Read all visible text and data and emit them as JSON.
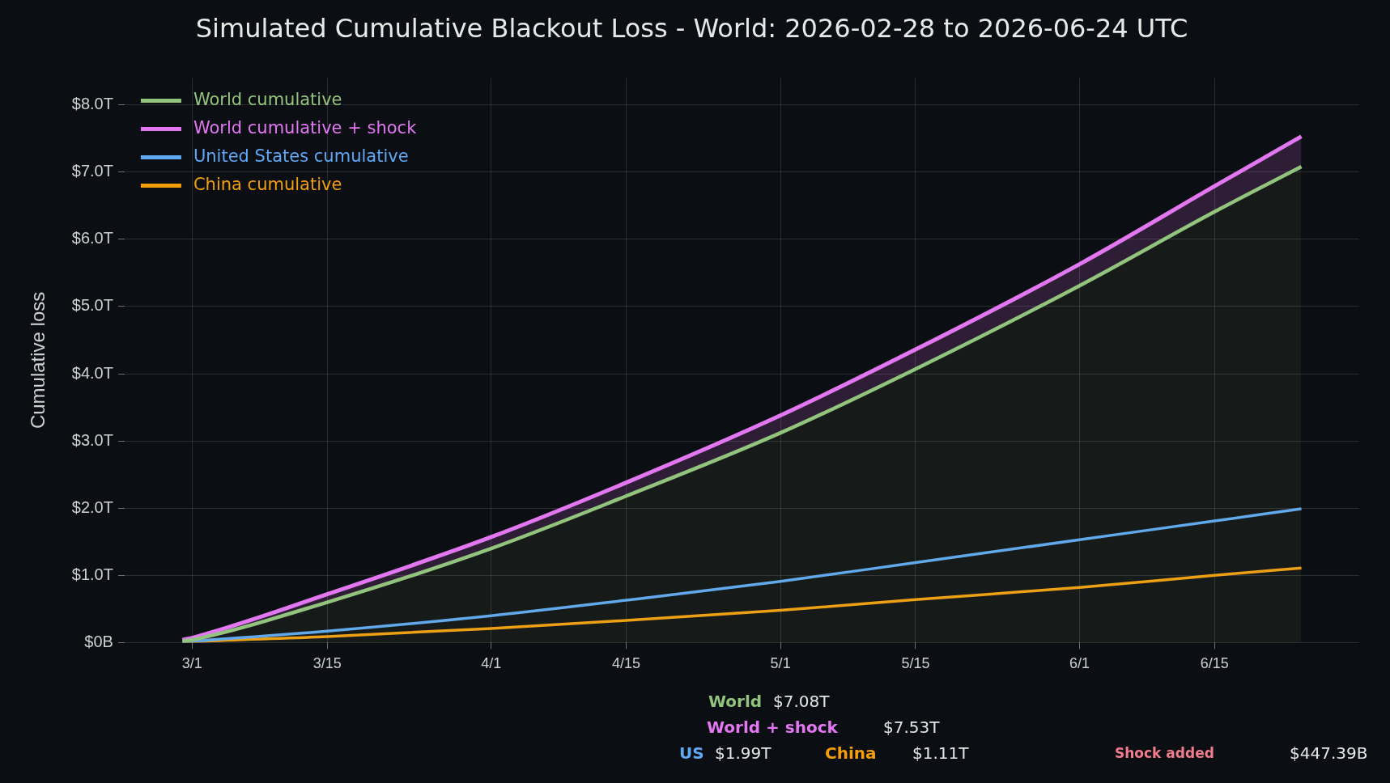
{
  "chart_data": {
    "type": "line",
    "title": "Simulated Cumulative Blackout Loss - World: 2026-02-28 to 2026-06-24 UTC",
    "ylabel": "Cumulative loss",
    "x": [
      "2026-02-28",
      "2026-03-01",
      "2026-03-15",
      "2026-04-01",
      "2026-04-15",
      "2026-05-01",
      "2026-05-15",
      "2026-06-01",
      "2026-06-15",
      "2026-06-24"
    ],
    "series": [
      {
        "name": "World cumulative",
        "type": "area",
        "color": "#93c47d",
        "values": [
          0.02,
          0.04,
          0.6,
          1.4,
          2.18,
          3.12,
          4.07,
          5.31,
          6.41,
          7.08
        ]
      },
      {
        "name": "World cumulative + shock",
        "color": "#e377f2",
        "values": [
          0.04,
          0.07,
          0.72,
          1.57,
          2.38,
          3.38,
          4.36,
          5.63,
          6.79,
          7.53
        ],
        "lower": [
          0.02,
          0.04,
          0.6,
          1.4,
          2.18,
          3.12,
          4.07,
          5.31,
          6.41,
          7.08
        ],
        "upper": [
          0.04,
          0.07,
          0.72,
          1.57,
          2.38,
          3.38,
          4.36,
          5.63,
          6.79,
          7.53
        ]
      },
      {
        "name": "United States cumulative",
        "color": "#5ea8f5",
        "values": [
          0.01,
          0.02,
          0.17,
          0.4,
          0.63,
          0.91,
          1.19,
          1.53,
          1.81,
          1.99
        ]
      },
      {
        "name": "China cumulative",
        "color": "#f59e0b",
        "values": [
          0.0,
          0.01,
          0.09,
          0.21,
          0.33,
          0.48,
          0.64,
          0.82,
          1.0,
          1.11
        ]
      }
    ],
    "xlim": [
      "2026-02-22",
      "2026-06-30"
    ],
    "xticks": [
      {
        "value": "2026-03-01",
        "label": "3/1"
      },
      {
        "value": "2026-03-15",
        "label": "3/15"
      },
      {
        "value": "2026-04-01",
        "label": "4/1"
      },
      {
        "value": "2026-04-15",
        "label": "4/15"
      },
      {
        "value": "2026-05-01",
        "label": "5/1"
      },
      {
        "value": "2026-05-15",
        "label": "5/15"
      },
      {
        "value": "2026-06-01",
        "label": "6/1"
      },
      {
        "value": "2026-06-15",
        "label": "6/15"
      }
    ],
    "ylim": [
      0,
      8.4
    ],
    "yticks": [
      {
        "value": 0,
        "label": "$0B"
      },
      {
        "value": 1,
        "label": "$1.0T"
      },
      {
        "value": 2,
        "label": "$2.0T"
      },
      {
        "value": 3,
        "label": "$3.0T"
      },
      {
        "value": 4,
        "label": "$4.0T"
      },
      {
        "value": 5,
        "label": "$5.0T"
      },
      {
        "value": 6,
        "label": "$6.0T"
      },
      {
        "value": 7,
        "label": "$7.0T"
      },
      {
        "value": 8,
        "label": "$8.0T"
      }
    ],
    "grid": true,
    "legend": "top left",
    "marker": "none",
    "line_style": "solid",
    "annotations": [
      "World",
      "$7.08T",
      "World + shock",
      "$7.53T",
      "US",
      "$1.99T",
      "China",
      "$1.11T",
      "Shock added",
      "$447.39B"
    ]
  }
}
